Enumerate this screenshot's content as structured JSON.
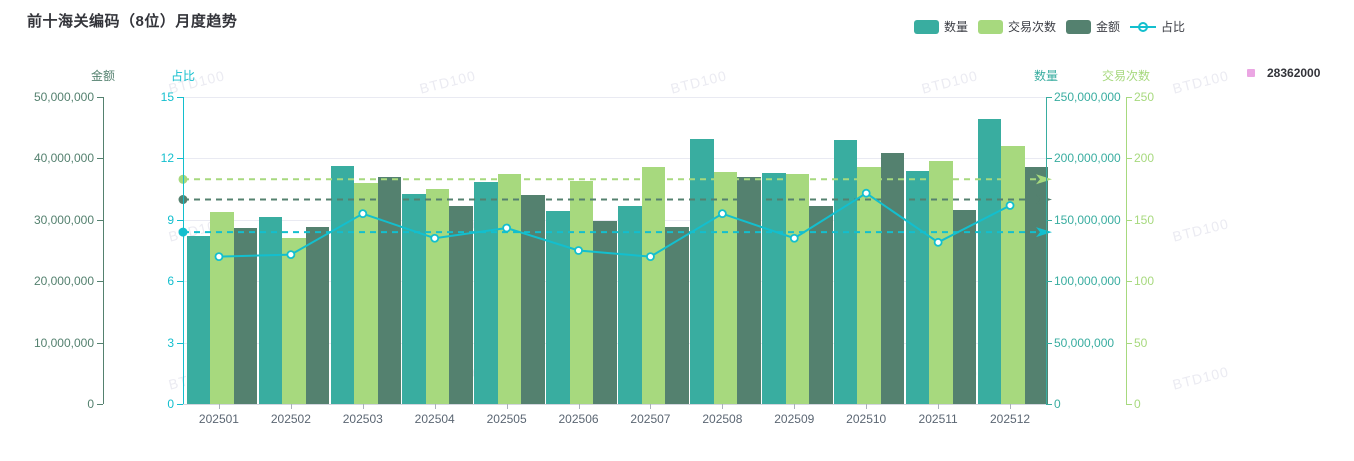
{
  "title": "前十海关编码（8位）月度趋势",
  "watermark_text": "BTD100",
  "legend": {
    "items": [
      {
        "label": "数量",
        "icon": "bar-swatch",
        "color": "#39ada0"
      },
      {
        "label": "交易次数",
        "icon": "bar-swatch",
        "color": "#a7d97e"
      },
      {
        "label": "金额",
        "icon": "bar-swatch",
        "color": "#54816f"
      },
      {
        "label": "占比",
        "icon": "line-marker",
        "color": "#13bfce"
      }
    ]
  },
  "code_legend": {
    "label": "28362000",
    "color": "#eba6e3"
  },
  "chart_data": {
    "type": "bar",
    "title": "前十海关编码（8位）月度趋势",
    "categories": [
      "202501",
      "202502",
      "202503",
      "202504",
      "202505",
      "202506",
      "202507",
      "202508",
      "202509",
      "202510",
      "202511",
      "202512"
    ],
    "series": [
      {
        "name": "数量",
        "type": "bar",
        "axis": "qty",
        "color": "#39ada0",
        "values": [
          137000000,
          152000000,
          194000000,
          171000000,
          181000000,
          157000000,
          161000000,
          216000000,
          188000000,
          215000000,
          190000000,
          232000000
        ]
      },
      {
        "name": "交易次数",
        "type": "bar",
        "axis": "trans",
        "color": "#a7d97e",
        "values": [
          156,
          135,
          180,
          175,
          187,
          182,
          193,
          189,
          187,
          193,
          198,
          210
        ]
      },
      {
        "name": "金额",
        "type": "bar",
        "axis": "amount",
        "color": "#54816f",
        "values": [
          28700000,
          28900000,
          37000000,
          32300000,
          34000000,
          29800000,
          28800000,
          36900000,
          32200000,
          40900000,
          31600000,
          38600000
        ]
      },
      {
        "name": "占比",
        "type": "line",
        "axis": "ratio",
        "color": "#13bfce",
        "values": [
          7.2,
          7.3,
          9.3,
          8.1,
          8.6,
          7.5,
          7.2,
          9.3,
          8.1,
          10.3,
          7.9,
          9.7
        ]
      }
    ],
    "axes": {
      "amount": {
        "name": "金额",
        "min": 0,
        "max": 50000000,
        "splits": 5,
        "format": "comma",
        "color": "#54816f"
      },
      "ratio": {
        "name": "占比",
        "min": 0,
        "max": 15,
        "splits": 5,
        "format": "plain",
        "color": "#13bfce"
      },
      "qty": {
        "name": "数量",
        "min": 0,
        "max": 250000000,
        "splits": 5,
        "format": "comma",
        "color": "#39ada0"
      },
      "trans": {
        "name": "交易次数",
        "min": 0,
        "max": 250,
        "splits": 5,
        "format": "plain",
        "color": "#a7d97e"
      }
    },
    "marklines": [
      {
        "series": "交易次数",
        "axis": "trans",
        "value": 183,
        "color": "#a7d97e"
      },
      {
        "series": "金额",
        "axis": "amount",
        "value": 33300000,
        "color": "#54816f"
      },
      {
        "series": "占比",
        "axis": "ratio",
        "value": 8.4,
        "color": "#13bfce"
      }
    ],
    "grid": true,
    "legend_position": "top-right"
  }
}
